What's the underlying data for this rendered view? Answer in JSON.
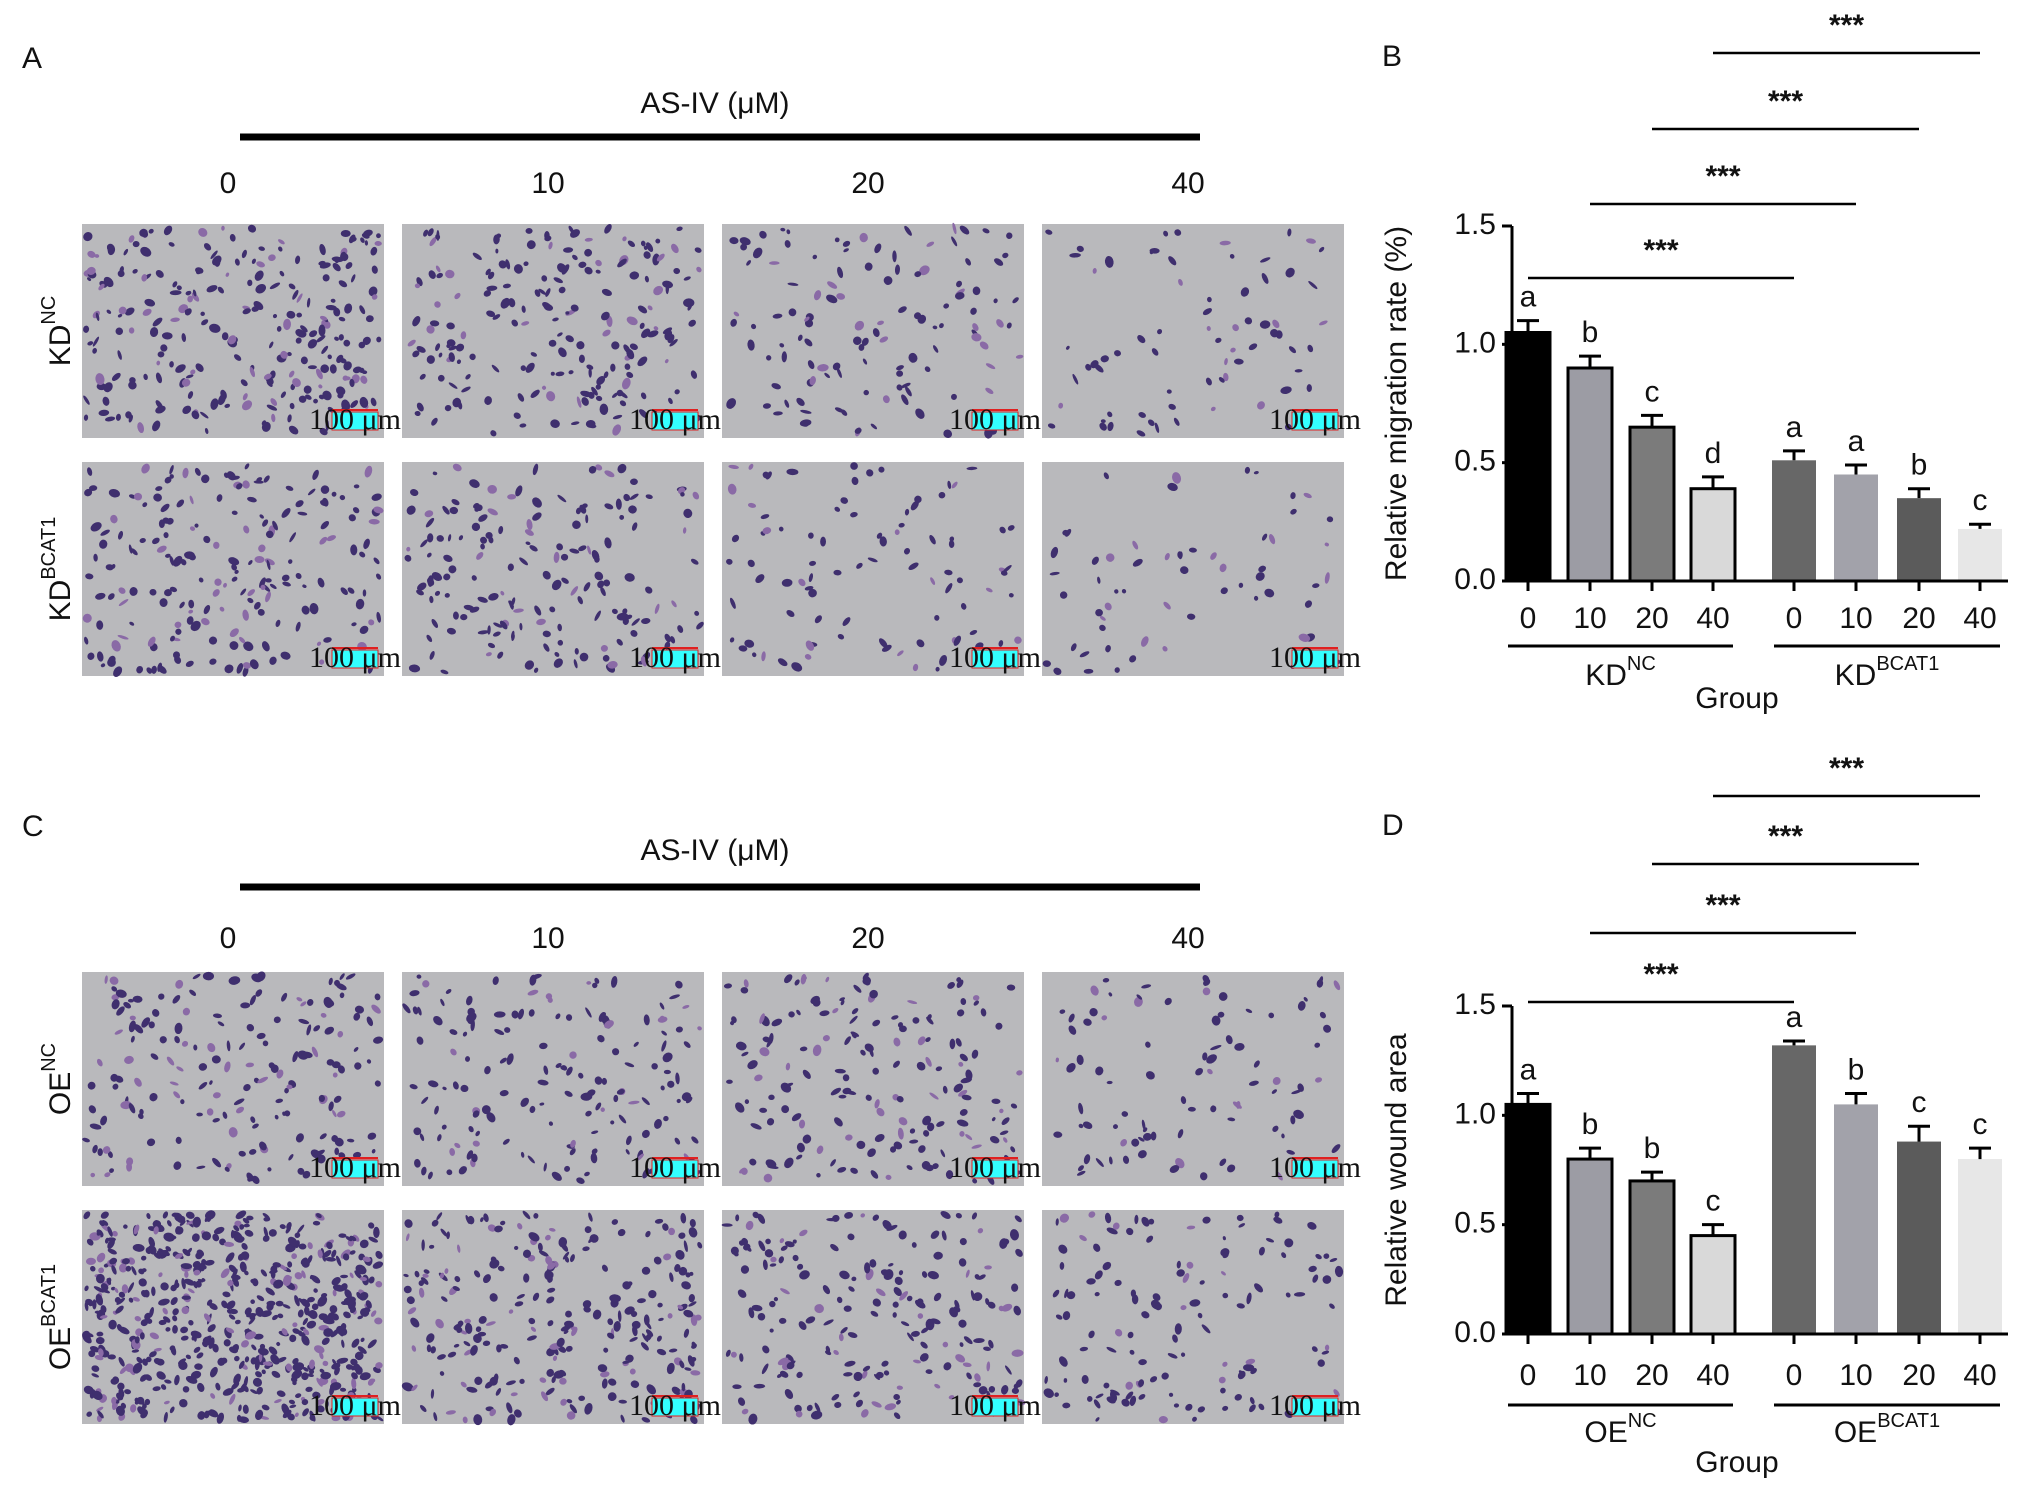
{
  "panels": [
    {
      "letter": "A",
      "treatment": "AS-IV (μM)",
      "doses": [
        "0",
        "10",
        "20",
        "40"
      ],
      "rows": [
        {
          "base": "KD",
          "sup": "NC"
        },
        {
          "base": "KD",
          "sup": "BCAT1"
        }
      ],
      "scale_bar": "100 μm"
    },
    {
      "letter": "C",
      "treatment": "AS-IV (μM)",
      "doses": [
        "0",
        "10",
        "20",
        "40"
      ],
      "rows": [
        {
          "base": "OE",
          "sup": "NC"
        },
        {
          "base": "OE",
          "sup": "BCAT1"
        }
      ],
      "scale_bar": "100 μm"
    }
  ],
  "chart_data": [
    {
      "type": "bar",
      "letter": "B",
      "ylabel": "Relative migration rate (%)",
      "xlabel": "Group",
      "groups": [
        {
          "base": "KD",
          "sup": "NC"
        },
        {
          "base": "KD",
          "sup": "BCAT1"
        }
      ],
      "categories": [
        "0",
        "10",
        "20",
        "40",
        "0",
        "10",
        "20",
        "40"
      ],
      "values": [
        1.05,
        0.9,
        0.65,
        0.39,
        0.51,
        0.45,
        0.35,
        0.22
      ],
      "errors": [
        0.05,
        0.05,
        0.05,
        0.05,
        0.04,
        0.04,
        0.04,
        0.02
      ],
      "annotations": [
        "a",
        "b",
        "c",
        "d",
        "a",
        "a",
        "b",
        "c"
      ],
      "colors": [
        "#000000",
        "#9c9ca4",
        "#7b7b7b",
        "#d9d9d9",
        "#676767",
        "#a2a2aa",
        "#5b5b5b",
        "#e7e7e7"
      ],
      "significance": [
        "***",
        "***",
        "***",
        "***"
      ],
      "ylim": [
        0,
        1.5
      ],
      "yticks": [
        {
          "value": 0,
          "label": "0.0"
        },
        0.5,
        {
          "value": 1,
          "label": "1.0"
        },
        1.5
      ]
    },
    {
      "type": "bar",
      "letter": "D",
      "ylabel": "Relative wound area",
      "xlabel": "Group",
      "groups": [
        {
          "base": "OE",
          "sup": "NC"
        },
        {
          "base": "OE",
          "sup": "BCAT1"
        }
      ],
      "categories": [
        "0",
        "10",
        "20",
        "40",
        "0",
        "10",
        "20",
        "40"
      ],
      "values": [
        1.05,
        0.8,
        0.7,
        0.45,
        1.32,
        1.05,
        0.88,
        0.8
      ],
      "errors": [
        0.05,
        0.05,
        0.04,
        0.05,
        0.02,
        0.05,
        0.07,
        0.05
      ],
      "annotations": [
        "a",
        "b",
        "b",
        "c",
        "a",
        "b",
        "c",
        "c"
      ],
      "colors": [
        "#000000",
        "#9c9ca4",
        "#7b7b7b",
        "#d9d9d9",
        "#676767",
        "#a2a2aa",
        "#5b5b5b",
        "#e7e7e7"
      ],
      "significance": [
        "***",
        "***",
        "***",
        "***"
      ],
      "ylim": [
        0,
        1.5
      ],
      "yticks": [
        {
          "value": 0,
          "label": "0.0"
        },
        0.5,
        {
          "value": 1,
          "label": "1.0"
        },
        1.5
      ]
    }
  ]
}
